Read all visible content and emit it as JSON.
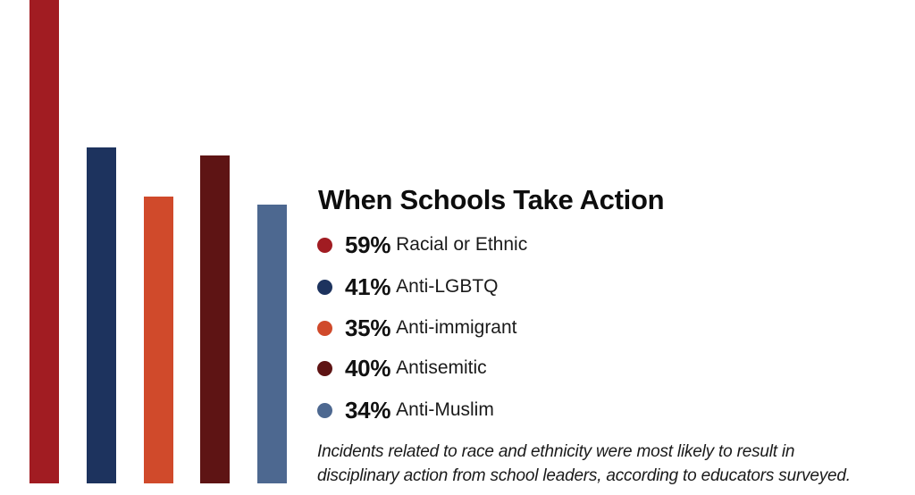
{
  "chart_data": {
    "type": "bar",
    "title": "When Schools Take Action",
    "categories": [
      "Racial or Ethnic",
      "Anti-LGBTQ",
      "Anti-immigrant",
      "Antisemitic",
      "Anti-Muslim"
    ],
    "values": [
      59,
      41,
      35,
      40,
      34
    ],
    "unit": "%",
    "colors": [
      "#a11c22",
      "#1d335e",
      "#d04a2b",
      "#5e1414",
      "#4d6890"
    ],
    "xlabel": "",
    "ylabel": "",
    "axes_visible": false,
    "grid": false,
    "legend_position": "right",
    "caption": "Incidents related to race and ethnicity were most likely to result in disciplinary action from school leaders, according to educators surveyed."
  },
  "title": "When Schools Take Action",
  "legend": [
    {
      "pct": "59%",
      "label": "Racial or Ethnic",
      "color": "#a11c22"
    },
    {
      "pct": "41%",
      "label": "Anti-LGBTQ",
      "color": "#1d335e"
    },
    {
      "pct": "35%",
      "label": "Anti-immigrant",
      "color": "#d04a2b"
    },
    {
      "pct": "40%",
      "label": "Antisemitic",
      "color": "#5e1414"
    },
    {
      "pct": "34%",
      "label": "Anti-Muslim",
      "color": "#4d6890"
    }
  ],
  "caption_line1": "Incidents related to race and ethnicity were most likely to result in",
  "caption_line2": "disciplinary action from school leaders, according to educators surveyed."
}
